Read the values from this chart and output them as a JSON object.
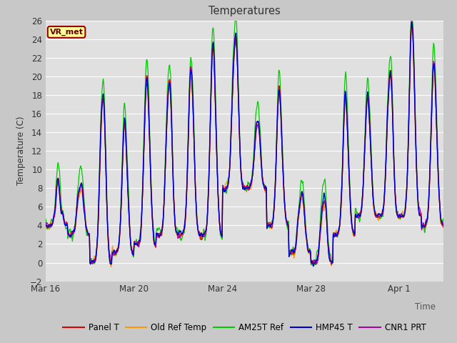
{
  "title": "Temperatures",
  "ylabel": "Temperature (C)",
  "xlabel": "Time",
  "annotation": "VR_met",
  "ylim": [
    -2,
    26
  ],
  "yticks": [
    -2,
    0,
    2,
    4,
    6,
    8,
    10,
    12,
    14,
    16,
    18,
    20,
    22,
    24,
    26
  ],
  "fig_bg": "#c8c8c8",
  "plot_bg": "#e0e0e0",
  "grid_color": "#ffffff",
  "series_colors": {
    "Panel T": "#dd0000",
    "Old Ref Temp": "#ff9900",
    "AM25T Ref": "#00cc00",
    "HMP45 T": "#0000cc",
    "CNR1 PRT": "#aa00aa"
  },
  "xtick_labels": [
    "Mar 16",
    "Mar 20",
    "Mar 24",
    "Mar 28",
    "Apr 1"
  ],
  "xtick_days": [
    0,
    4,
    8,
    12,
    16
  ],
  "n_days": 18,
  "pts_per_day": 48
}
